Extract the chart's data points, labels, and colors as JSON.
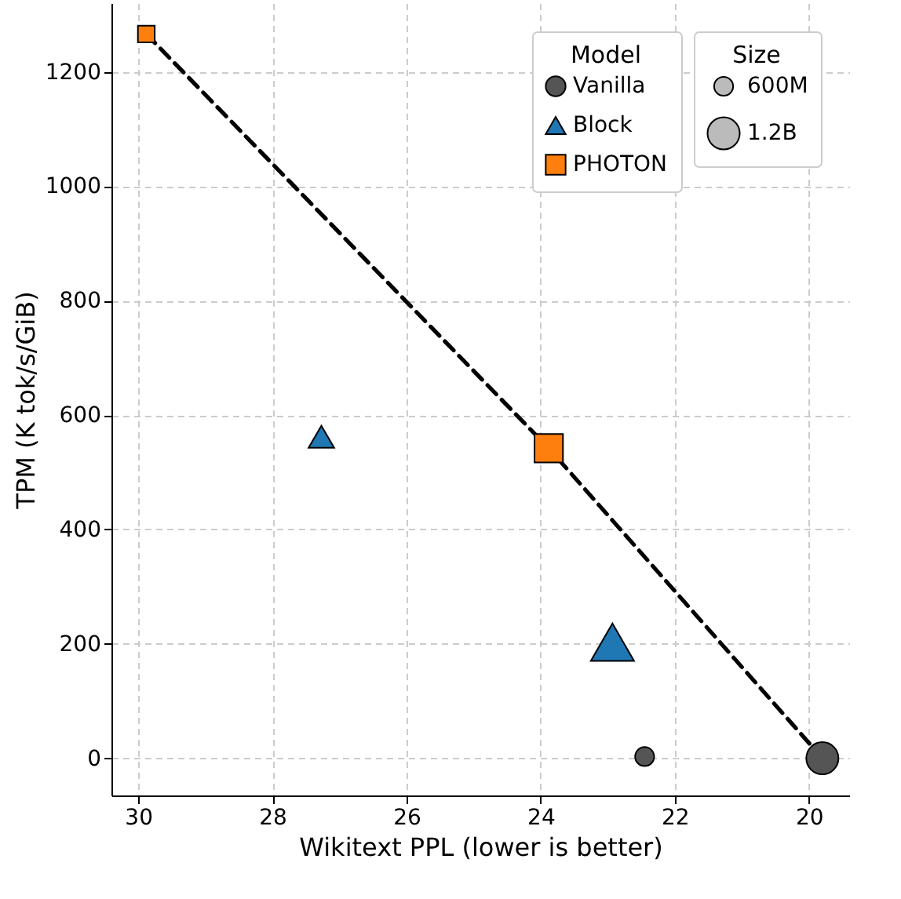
{
  "chart_data": {
    "type": "scatter",
    "xlabel": "Wikitext PPL (lower is better)",
    "ylabel": "TPM (K tok/s/GiB)",
    "legend_title": "Model",
    "xlim": [
      30.4,
      19.4
    ],
    "xticks": [
      30,
      28,
      26,
      24,
      22,
      20
    ],
    "ylim": [
      -65,
      1320
    ],
    "yticks": [
      0,
      200,
      400,
      600,
      800,
      1000,
      1200
    ],
    "grid": true,
    "legend": "top right",
    "size_legend": [
      {
        "value": 0.35,
        "label": "600M"
      },
      {
        "value": 1,
        "label": "1.2B"
      }
    ],
    "annotations": [
      "Size"
    ],
    "series": [
      {
        "type": "line",
        "color": "#000000",
        "line_style": "dashed",
        "marker": "none",
        "x": [
          29.88,
          23.88,
          19.8
        ],
        "values": [
          1266,
          542,
          0
        ]
      },
      {
        "name": "Vanilla",
        "type": "scatter",
        "color": "#555555",
        "marker": "circle",
        "x": [
          22.45,
          19.8
        ],
        "values": [
          3,
          0
        ],
        "sizes": [
          0.35,
          1
        ]
      },
      {
        "name": "Block",
        "type": "scatter",
        "color": "#1f77b4",
        "marker": "triangle",
        "x": [
          27.27,
          22.93
        ],
        "values": [
          562,
          203
        ],
        "sizes": [
          0.35,
          1
        ]
      },
      {
        "name": "PHOTON",
        "type": "scatter",
        "color": "#ff7f0e",
        "marker": "square",
        "x": [
          29.88,
          23.88
        ],
        "values": [
          1266,
          542
        ],
        "sizes": [
          0.35,
          1
        ]
      }
    ]
  }
}
